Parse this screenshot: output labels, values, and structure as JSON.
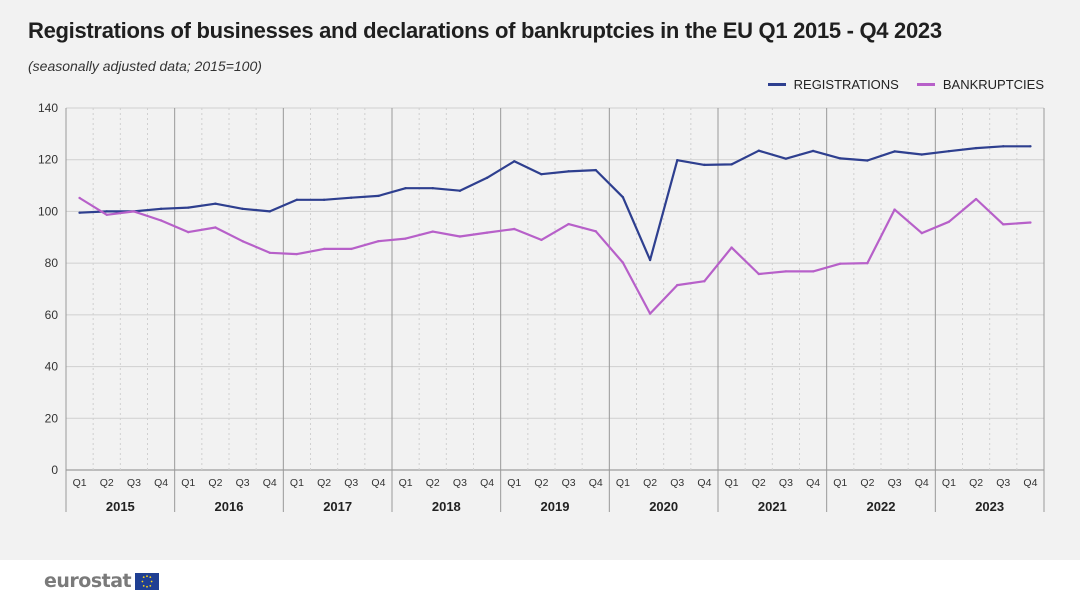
{
  "title": "Registrations of businesses and declarations of bankruptcies in the EU Q1 2015 - Q4 2023",
  "subtitle": "(seasonally adjusted data; 2015=100)",
  "logo_text": "eurostat",
  "colors": {
    "registrations": "#2e3f8f",
    "bankruptcies": "#b760c9",
    "background": "#f2f2f2"
  },
  "chart_data": {
    "type": "line",
    "title": "Registrations of businesses and declarations of bankruptcies in the EU Q1 2015 - Q4 2023",
    "subtitle": "(seasonally adjusted data; 2015=100)",
    "years": [
      "2015",
      "2016",
      "2017",
      "2018",
      "2019",
      "2020",
      "2021",
      "2022",
      "2023"
    ],
    "quarters": [
      "Q1",
      "Q2",
      "Q3",
      "Q4"
    ],
    "ylim": [
      0,
      140
    ],
    "yticks": [
      "0",
      "20",
      "40",
      "60",
      "80",
      "100",
      "120",
      "140"
    ],
    "legend_position": "top-right",
    "grid": true,
    "series": [
      {
        "name": "REGISTRATIONS",
        "color": "#2e3f8f",
        "values": [
          99.5,
          100,
          100,
          101,
          101.5,
          103,
          101,
          100,
          104.5,
          104.5,
          105.3,
          106,
          109,
          109,
          108,
          113,
          119.4,
          114.4,
          115.5,
          116,
          105.5,
          81.2,
          119.8,
          118,
          118.2,
          123.5,
          120.4,
          123.4,
          120.5,
          119.7,
          123.2,
          122,
          123.3,
          124.5,
          125.2,
          125.2
        ]
      },
      {
        "name": "BANKRUPTCIES",
        "color": "#b760c9",
        "values": [
          105.2,
          98.7,
          100,
          96.5,
          92,
          93.8,
          88.5,
          84,
          83.5,
          85.5,
          85.5,
          88.5,
          89.5,
          92.2,
          90.3,
          91.8,
          93.2,
          89,
          95.1,
          92.3,
          80.2,
          60.5,
          71.5,
          73,
          86,
          75.8,
          76.8,
          76.8,
          79.8,
          80,
          100.7,
          91.6,
          96,
          104.8,
          95,
          95.7
        ]
      }
    ]
  }
}
